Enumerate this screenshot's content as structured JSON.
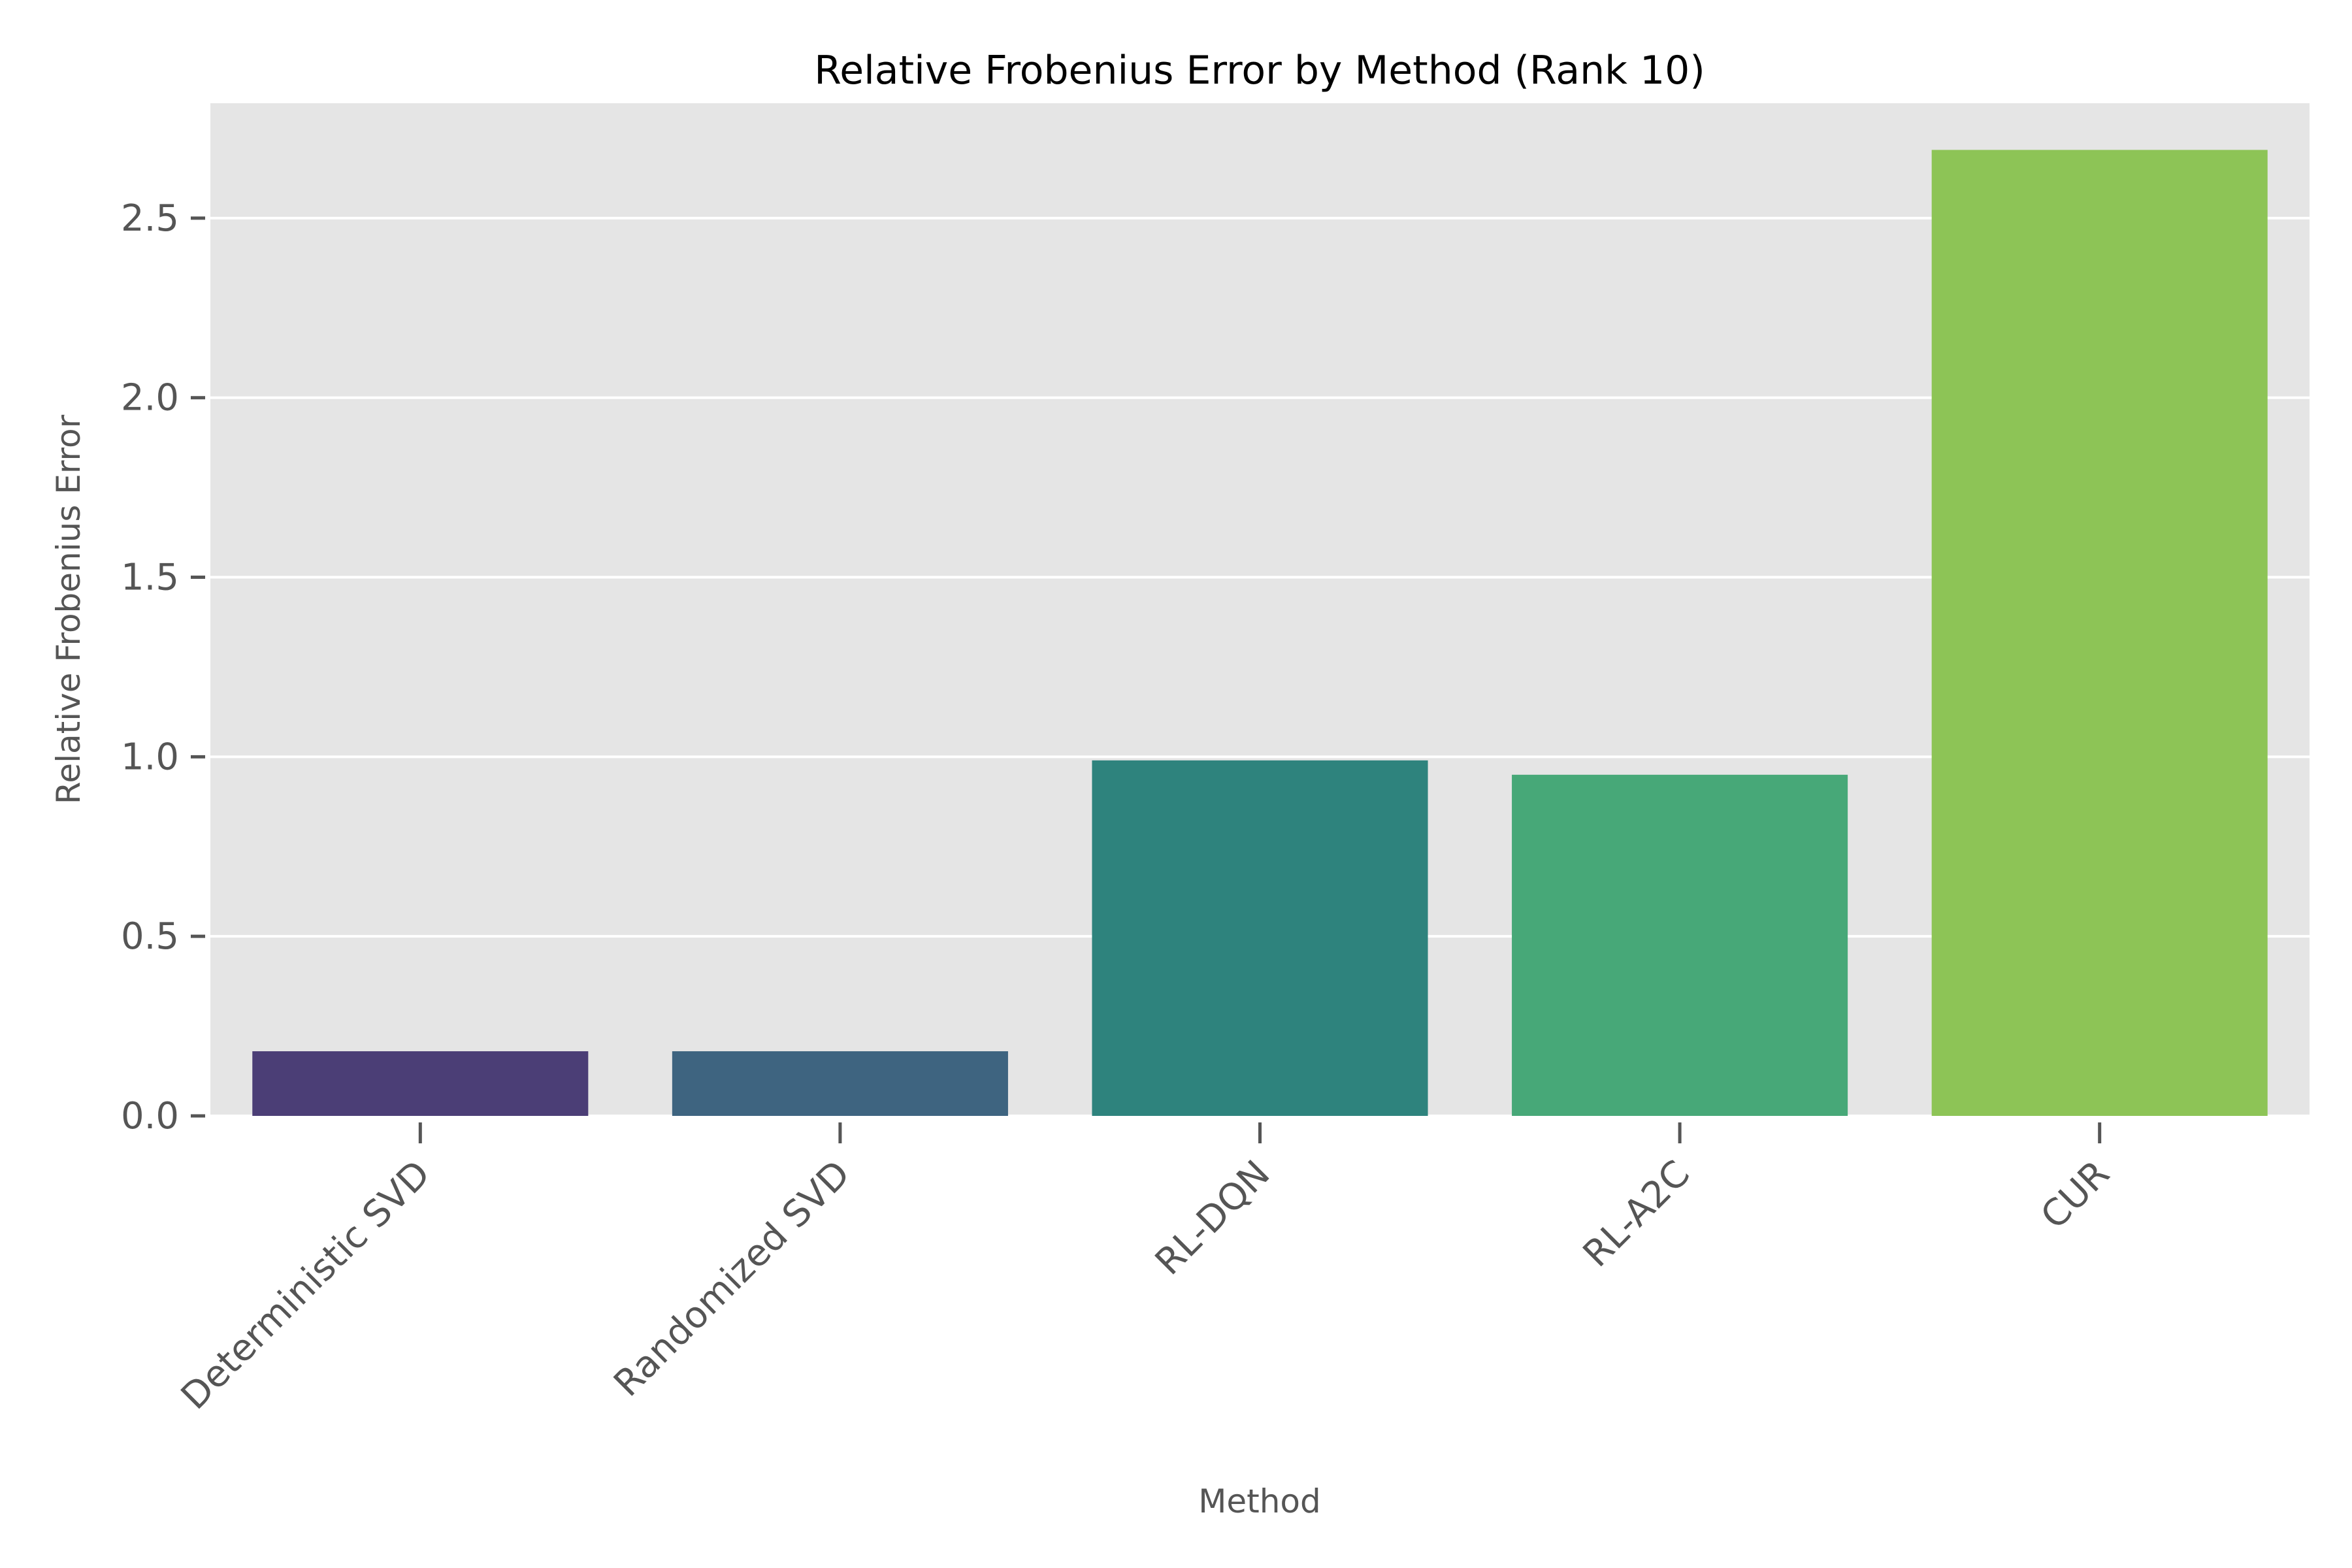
{
  "chart_data": {
    "type": "bar",
    "title": "Relative Frobenius Error by Method (Rank 10)",
    "xlabel": "Method",
    "ylabel": "Relative Frobenius Error",
    "categories": [
      "Deterministic SVD",
      "Randomized SVD",
      "RL-DQN",
      "RL-A2C",
      "CUR"
    ],
    "values": [
      0.18,
      0.18,
      0.99,
      0.95,
      2.69
    ],
    "colors": [
      "#4b3e76",
      "#3e6480",
      "#2e837d",
      "#47a878",
      "#8dc456"
    ],
    "ylim": [
      0,
      2.82
    ],
    "yticks": [
      "0.0",
      "0.5",
      "1.0",
      "1.5",
      "2.0",
      "2.5"
    ],
    "ytick_values": [
      0,
      0.5,
      1.0,
      1.5,
      2.0,
      2.5
    ],
    "grid": true,
    "background": "#e5e5e5",
    "grid_color": "#ffffff"
  }
}
